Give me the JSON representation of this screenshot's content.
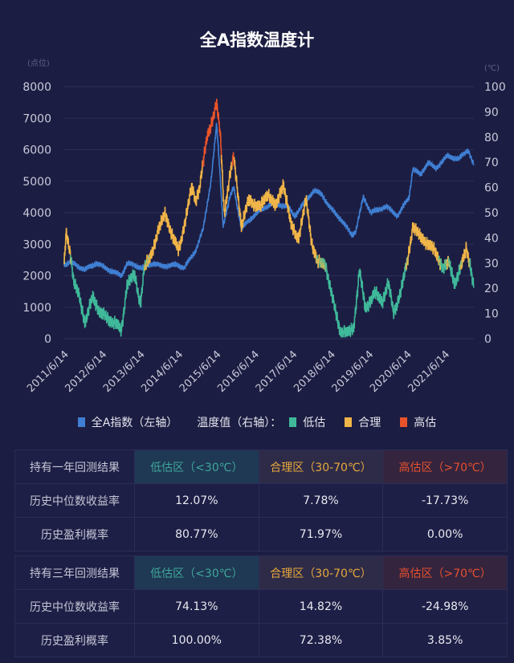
{
  "title": "全A指数温度计",
  "colors": {
    "index": "#3f7fd3",
    "low": "#3fb99a",
    "mid": "#f0b548",
    "high": "#e8532a",
    "grid": "#2c2e5a",
    "axis_text": "#c9cadb"
  },
  "legend": {
    "index_label": "全A指数（左轴）",
    "temp_label": "温度值（右轴）：",
    "low_label": "低估",
    "mid_label": "合理",
    "high_label": "高估"
  },
  "chart_data": {
    "type": "line",
    "title": "全A指数温度计",
    "ylabel_left": "(点位)",
    "ylabel_right": "(℃)",
    "ylim_left": [
      0,
      8000
    ],
    "ylim_right": [
      0,
      100
    ],
    "yticks_left": [
      "0",
      "1000",
      "2000",
      "3000",
      "4000",
      "5000",
      "6000",
      "7000",
      "8000"
    ],
    "yticks_right": [
      "0",
      "10",
      "20",
      "30",
      "40",
      "50",
      "60",
      "70",
      "80",
      "90",
      "100"
    ],
    "xticks": [
      "2011/6/14",
      "2012/6/14",
      "2013/6/14",
      "2014/6/14",
      "2015/6/14",
      "2016/6/14",
      "2017/6/14",
      "2018/6/14",
      "2019/6/14",
      "2020/6/14",
      "2021/6/14"
    ],
    "xrange_years": [
      2011.45,
      2022.2
    ],
    "grid": true,
    "thresholds": {
      "low_below": 30,
      "high_above": 70
    },
    "series": [
      {
        "name": "全A指数",
        "axis": "left",
        "points": [
          [
            2011.45,
            2350
          ],
          [
            2011.6,
            2450
          ],
          [
            2011.8,
            2300
          ],
          [
            2012.0,
            2200
          ],
          [
            2012.3,
            2400
          ],
          [
            2012.6,
            2200
          ],
          [
            2012.95,
            2000
          ],
          [
            2013.1,
            2400
          ],
          [
            2013.5,
            2250
          ],
          [
            2013.8,
            2400
          ],
          [
            2014.0,
            2300
          ],
          [
            2014.4,
            2350
          ],
          [
            2014.6,
            2250
          ],
          [
            2014.9,
            2800
          ],
          [
            2015.1,
            3500
          ],
          [
            2015.3,
            5000
          ],
          [
            2015.45,
            6800
          ],
          [
            2015.55,
            5000
          ],
          [
            2015.62,
            3600
          ],
          [
            2015.8,
            4500
          ],
          [
            2015.9,
            4800
          ],
          [
            2016.1,
            3500
          ],
          [
            2016.5,
            4000
          ],
          [
            2016.9,
            4300
          ],
          [
            2017.3,
            4200
          ],
          [
            2017.5,
            3900
          ],
          [
            2017.8,
            4400
          ],
          [
            2018.0,
            4700
          ],
          [
            2018.2,
            4600
          ],
          [
            2018.4,
            4200
          ],
          [
            2018.7,
            3800
          ],
          [
            2019.0,
            3300
          ],
          [
            2019.1,
            3400
          ],
          [
            2019.3,
            4500
          ],
          [
            2019.5,
            4000
          ],
          [
            2019.9,
            4200
          ],
          [
            2020.1,
            4000
          ],
          [
            2020.2,
            3900
          ],
          [
            2020.5,
            4500
          ],
          [
            2020.6,
            5400
          ],
          [
            2020.8,
            5200
          ],
          [
            2021.0,
            5600
          ],
          [
            2021.2,
            5400
          ],
          [
            2021.5,
            5800
          ],
          [
            2021.8,
            5700
          ],
          [
            2022.05,
            6000
          ],
          [
            2022.2,
            5500
          ]
        ]
      },
      {
        "name": "温度值",
        "axis": "right",
        "points": [
          [
            2011.45,
            30
          ],
          [
            2011.5,
            43
          ],
          [
            2011.6,
            35
          ],
          [
            2011.7,
            22
          ],
          [
            2011.85,
            17
          ],
          [
            2012.0,
            6
          ],
          [
            2012.2,
            17
          ],
          [
            2012.4,
            10
          ],
          [
            2012.6,
            8
          ],
          [
            2012.8,
            6
          ],
          [
            2012.95,
            3
          ],
          [
            2013.1,
            22
          ],
          [
            2013.3,
            25
          ],
          [
            2013.45,
            14
          ],
          [
            2013.55,
            28
          ],
          [
            2013.7,
            32
          ],
          [
            2013.9,
            42
          ],
          [
            2014.1,
            50
          ],
          [
            2014.3,
            40
          ],
          [
            2014.45,
            35
          ],
          [
            2014.6,
            45
          ],
          [
            2014.8,
            60
          ],
          [
            2014.9,
            55
          ],
          [
            2015.0,
            60
          ],
          [
            2015.2,
            80
          ],
          [
            2015.45,
            93
          ],
          [
            2015.55,
            80
          ],
          [
            2015.65,
            50
          ],
          [
            2015.8,
            65
          ],
          [
            2015.9,
            72
          ],
          [
            2016.1,
            45
          ],
          [
            2016.3,
            55
          ],
          [
            2016.6,
            52
          ],
          [
            2016.8,
            58
          ],
          [
            2017.0,
            52
          ],
          [
            2017.2,
            62
          ],
          [
            2017.4,
            45
          ],
          [
            2017.6,
            40
          ],
          [
            2017.8,
            55
          ],
          [
            2017.95,
            38
          ],
          [
            2018.1,
            30
          ],
          [
            2018.3,
            30
          ],
          [
            2018.5,
            15
          ],
          [
            2018.7,
            3
          ],
          [
            2018.9,
            2
          ],
          [
            2019.05,
            5
          ],
          [
            2019.2,
            27
          ],
          [
            2019.35,
            12
          ],
          [
            2019.6,
            18
          ],
          [
            2019.8,
            15
          ],
          [
            2019.95,
            22
          ],
          [
            2020.1,
            10
          ],
          [
            2020.3,
            20
          ],
          [
            2020.45,
            30
          ],
          [
            2020.6,
            45
          ],
          [
            2020.8,
            40
          ],
          [
            2021.0,
            38
          ],
          [
            2021.2,
            34
          ],
          [
            2021.4,
            28
          ],
          [
            2021.55,
            30
          ],
          [
            2021.7,
            22
          ],
          [
            2021.9,
            30
          ],
          [
            2022.0,
            36
          ],
          [
            2022.1,
            30
          ],
          [
            2022.2,
            20
          ]
        ]
      }
    ]
  },
  "tables": [
    {
      "header": [
        "持有一年回测结果",
        "低估区（<30℃）",
        "合理区（30-70℃）",
        "高估区（>70℃）"
      ],
      "rows": [
        [
          "历史中位数收益率",
          "12.07%",
          "7.78%",
          "-17.73%"
        ],
        [
          "历史盈利概率",
          "80.77%",
          "71.97%",
          "0.00%"
        ]
      ]
    },
    {
      "header": [
        "持有三年回测结果",
        "低估区（<30℃）",
        "合理区（30-70℃）",
        "高估区（>70℃）"
      ],
      "rows": [
        [
          "历史中位数收益率",
          "74.13%",
          "14.82%",
          "-24.98%"
        ],
        [
          "历史盈利概率",
          "100.00%",
          "72.38%",
          "3.85%"
        ]
      ]
    }
  ]
}
